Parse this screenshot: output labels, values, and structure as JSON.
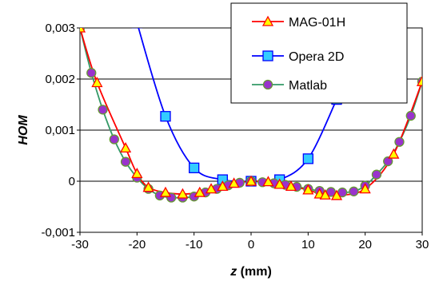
{
  "chart_data": {
    "type": "line",
    "xlabel_italic": "z",
    "xlabel_unit": " (mm)",
    "ylabel": "HOM",
    "xlim": [
      -30,
      30
    ],
    "ylim": [
      -0.001,
      0.003
    ],
    "x_ticks": [
      -30,
      -20,
      -10,
      0,
      10,
      20,
      30
    ],
    "x_tick_labels": [
      "-30",
      "-20",
      "-10",
      "0",
      "10",
      "20",
      "30"
    ],
    "y_ticks": [
      -0.001,
      0,
      0.001,
      0.002,
      0.003
    ],
    "y_tick_labels": [
      "-0,001",
      "0",
      "0,001",
      "0,002",
      "0,003"
    ],
    "grid": "horizontal",
    "legend_position": "top-right",
    "series": [
      {
        "name": "MAG-01H",
        "color": "#ff0000",
        "marker": "triangle",
        "marker_fill": "#ffff00",
        "marker_stroke": "#ff0000",
        "points": [
          [
            -30,
            0.003
          ],
          [
            -27,
            0.00193
          ],
          [
            -22,
            0.00065
          ],
          [
            -20,
            0.00015
          ],
          [
            -18,
            -0.00012
          ],
          [
            -15,
            -0.00022
          ],
          [
            -12,
            -0.00025
          ],
          [
            -9,
            -0.00022
          ],
          [
            -7,
            -0.00015
          ],
          [
            -5,
            -0.0001
          ],
          [
            -3,
            -4e-05
          ],
          [
            0,
            0
          ],
          [
            3,
            -1e-05
          ],
          [
            5,
            -6e-05
          ],
          [
            7,
            -0.0001
          ],
          [
            10,
            -0.00017
          ],
          [
            12,
            -0.00025
          ],
          [
            13,
            -0.00027
          ],
          [
            15,
            -0.00028
          ],
          [
            20,
            -0.00015
          ],
          [
            25,
            0.00053
          ],
          [
            30,
            0.00195
          ]
        ]
      },
      {
        "name": "Opera 2D",
        "color": "#0000ff",
        "marker": "square",
        "marker_fill": "#33ccff",
        "marker_stroke": "#0000ff",
        "points": [
          [
            -20,
            0.0031
          ],
          [
            -15,
            0.00127
          ],
          [
            -10,
            0.00026
          ],
          [
            -5,
            3e-05
          ],
          [
            0,
            0
          ],
          [
            5,
            3e-05
          ],
          [
            10,
            0.00044
          ],
          [
            15,
            0.0016
          ]
        ]
      },
      {
        "name": "Matlab",
        "color": "#339966",
        "marker": "circle",
        "marker_fill": "#9933cc",
        "marker_stroke": "#669933",
        "points": [
          [
            -30,
            0.003
          ],
          [
            -28,
            0.00212
          ],
          [
            -26,
            0.0014
          ],
          [
            -24,
            0.00082
          ],
          [
            -22,
            0.00038
          ],
          [
            -20,
            7e-05
          ],
          [
            -18,
            -0.00015
          ],
          [
            -16,
            -0.00028
          ],
          [
            -14,
            -0.00032
          ],
          [
            -12,
            -0.00032
          ],
          [
            -10,
            -0.0003
          ],
          [
            -8,
            -0.00022
          ],
          [
            -6,
            -0.00015
          ],
          [
            -4,
            -8e-05
          ],
          [
            -2,
            -3e-05
          ],
          [
            0,
            0
          ],
          [
            2,
            -2e-05
          ],
          [
            4,
            -4e-05
          ],
          [
            6,
            -7e-05
          ],
          [
            8,
            -0.00011
          ],
          [
            10,
            -0.00015
          ],
          [
            12,
            -0.00019
          ],
          [
            14,
            -0.00021
          ],
          [
            16,
            -0.00022
          ],
          [
            18,
            -0.0002
          ],
          [
            20,
            -9e-05
          ],
          [
            22,
            0.00013
          ],
          [
            24,
            0.00039
          ],
          [
            26,
            0.00077
          ],
          [
            28,
            0.00128
          ],
          [
            30,
            0.00195
          ]
        ]
      }
    ]
  }
}
